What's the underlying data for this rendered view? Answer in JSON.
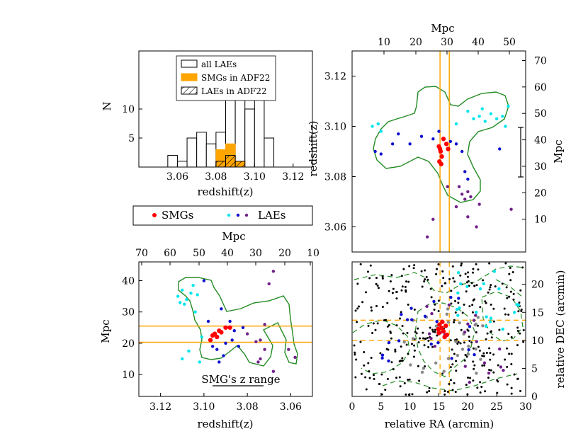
{
  "colors": {
    "smg": "#ff0000",
    "lae_cyan": "#00e5ee",
    "lae_blue": "#1010d0",
    "lae_purple": "#70208a",
    "orange": "#ffa500",
    "contour": "#228B22",
    "gray": "#888888",
    "black": "#000000"
  },
  "legend": {
    "smgs": "SMGs",
    "laes": "LAEs"
  },
  "chart_data": [
    {
      "id": "histogram",
      "type": "bar",
      "xlabel": "redshift(z)",
      "ylabel": "N",
      "xlim": [
        3.04,
        3.13
      ],
      "ylim": [
        0,
        20
      ],
      "xticks": [
        "3.06",
        "3.08",
        "3.10",
        "3.12"
      ],
      "yticks": [
        "5",
        "10"
      ],
      "bin_edges": [
        3.055,
        3.06,
        3.065,
        3.07,
        3.075,
        3.08,
        3.085,
        3.09,
        3.095,
        3.1,
        3.105,
        3.11
      ],
      "series": [
        {
          "name": "all LAEs",
          "values": [
            2,
            1,
            5,
            6,
            4,
            6,
            12,
            13,
            10,
            12,
            5
          ]
        },
        {
          "name": "SMGs in ADF22",
          "values": [
            0,
            0,
            0,
            0,
            0,
            3,
            4,
            1,
            0,
            0,
            0
          ]
        },
        {
          "name": "LAEs in ADF22",
          "values": [
            0,
            0,
            0,
            0,
            0,
            1,
            2,
            1,
            0,
            0,
            0
          ]
        }
      ]
    },
    {
      "id": "redshift_vs_ra",
      "type": "scatter",
      "ylabel": "redshift(z)",
      "y2label": "Mpc",
      "x2label": "Mpc",
      "xlim": [
        0,
        30
      ],
      "ylim": [
        3.05,
        3.13
      ],
      "y2lim": [
        0,
        72
      ],
      "yticks": [
        "3.06",
        "3.08",
        "3.10",
        "3.12"
      ],
      "x2ticks": [
        "10",
        "20",
        "30",
        "40",
        "50"
      ],
      "y2ticks": [
        "10",
        "20",
        "30",
        "40",
        "50",
        "60",
        "70"
      ],
      "vlines": [
        15.2,
        16.8
      ],
      "smg": [
        [
          15.0,
          3.092
        ],
        [
          15.3,
          3.09
        ],
        [
          15.5,
          3.088
        ],
        [
          15.1,
          3.086
        ],
        [
          15.4,
          3.085
        ],
        [
          16.3,
          3.093
        ],
        [
          16.6,
          3.091
        ],
        [
          15.8,
          3.095
        ],
        [
          15.2,
          3.091
        ]
      ],
      "lae_cyan": [
        [
          3.5,
          3.1
        ],
        [
          4.5,
          3.101
        ],
        [
          5.0,
          3.098
        ],
        [
          21.0,
          3.103
        ],
        [
          22.0,
          3.104
        ],
        [
          23.0,
          3.102
        ],
        [
          24.0,
          3.105
        ],
        [
          25.0,
          3.103
        ],
        [
          26.0,
          3.104
        ],
        [
          27.0,
          3.108
        ],
        [
          26.5,
          3.1
        ],
        [
          18.0,
          3.101
        ],
        [
          20.0,
          3.106
        ],
        [
          22.5,
          3.107
        ]
      ],
      "lae_blue": [
        [
          4.0,
          3.09
        ],
        [
          5.0,
          3.089
        ],
        [
          7.0,
          3.093
        ],
        [
          8.0,
          3.097
        ],
        [
          10.0,
          3.093
        ],
        [
          12.0,
          3.096
        ],
        [
          14.0,
          3.095
        ],
        [
          15.0,
          3.098
        ],
        [
          17.0,
          3.094
        ],
        [
          18.0,
          3.093
        ],
        [
          19.0,
          3.09
        ],
        [
          19.5,
          3.082
        ],
        [
          20.0,
          3.079
        ],
        [
          25.5,
          3.091
        ]
      ],
      "lae_purple": [
        [
          13.0,
          3.056
        ],
        [
          14.0,
          3.063
        ],
        [
          16.5,
          3.076
        ],
        [
          18.0,
          3.068
        ],
        [
          18.5,
          3.076
        ],
        [
          19.0,
          3.073
        ],
        [
          20.0,
          3.074
        ],
        [
          20.5,
          3.072
        ],
        [
          19.5,
          3.071
        ],
        [
          20.0,
          3.064
        ],
        [
          22.0,
          3.069
        ],
        [
          21.5,
          3.06
        ],
        [
          27.5,
          3.067
        ]
      ]
    },
    {
      "id": "mpc_vs_redshift",
      "type": "scatter",
      "xlabel": "redshift(z)",
      "ylabel": "Mpc",
      "x2label": "Mpc",
      "xlim": [
        3.13,
        3.05
      ],
      "ylim": [
        3,
        46
      ],
      "xticks": [
        "3.12",
        "3.10",
        "3.08",
        "3.06"
      ],
      "yticks": [
        "10",
        "20",
        "30",
        "40"
      ],
      "x2ticks": [
        "70",
        "60",
        "50",
        "40",
        "30",
        "20",
        "10"
      ],
      "hlines": [
        20.3,
        25.5
      ],
      "annotation": "SMG's z range",
      "smg": [
        [
          3.093,
          24.0
        ],
        [
          3.094,
          22.0
        ],
        [
          3.092,
          23.5
        ],
        [
          3.097,
          21.0
        ],
        [
          3.096,
          22.5
        ],
        [
          3.09,
          25.0
        ],
        [
          3.088,
          25.0
        ],
        [
          3.095,
          23.0
        ]
      ],
      "lae_cyan": [
        [
          3.11,
          37.0
        ],
        [
          3.112,
          35.0
        ],
        [
          3.106,
          36.0
        ],
        [
          3.108,
          34.0
        ],
        [
          3.103,
          35.5
        ],
        [
          3.109,
          32.5
        ],
        [
          3.104,
          30.0
        ],
        [
          3.101,
          22.0
        ],
        [
          3.11,
          15.0
        ],
        [
          3.107,
          17.5
        ],
        [
          3.102,
          14.0
        ],
        [
          3.111,
          33.0
        ],
        [
          3.105,
          38.5
        ]
      ],
      "lae_blue": [
        [
          3.1,
          40.0
        ],
        [
          3.098,
          27.0
        ],
        [
          3.096,
          19.0
        ],
        [
          3.094,
          18.0
        ],
        [
          3.092,
          31.0
        ],
        [
          3.09,
          20.0
        ],
        [
          3.088,
          27.0
        ],
        [
          3.086,
          24.0
        ],
        [
          3.084,
          19.0
        ],
        [
          3.082,
          25.0
        ],
        [
          3.093,
          14.0
        ],
        [
          3.091,
          16.0
        ],
        [
          3.087,
          21.0
        ]
      ],
      "lae_purple": [
        [
          3.068,
          43.0
        ],
        [
          3.07,
          39.0
        ],
        [
          3.072,
          26.0
        ],
        [
          3.074,
          21.0
        ],
        [
          3.072,
          18.0
        ],
        [
          3.074,
          15.0
        ],
        [
          3.061,
          18.0
        ],
        [
          3.058,
          15.5
        ],
        [
          3.076,
          20.5
        ],
        [
          3.08,
          23.0
        ],
        [
          3.075,
          14.0
        ],
        [
          3.068,
          11.0
        ]
      ]
    },
    {
      "id": "sky_map",
      "type": "scatter",
      "xlabel": "relative RA (arcmin)",
      "y2label": "relative DEC (arcmin)",
      "xlim": [
        0,
        30
      ],
      "ylim": [
        0,
        24
      ],
      "xticks": [
        "0",
        "5",
        "10",
        "15",
        "20",
        "25",
        "30"
      ],
      "y2ticks": [
        "0",
        "5",
        "10",
        "15",
        "20"
      ],
      "dashed_v": [
        15.2,
        16.8
      ],
      "dashed_h": [
        10.0,
        13.6
      ]
    }
  ]
}
